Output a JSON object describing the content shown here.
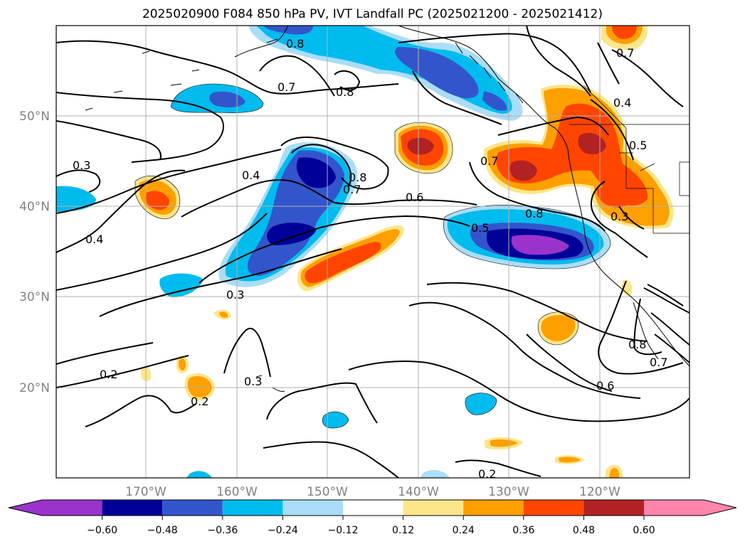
{
  "title": "2025020900 F084 850 hPa PV, IVT Landfall PC (2025021200 - 2025021412)",
  "map": {
    "lat_labels": [
      "50°N",
      "40°N",
      "30°N",
      "20°N"
    ],
    "lon_labels": [
      "170°W",
      "160°W",
      "150°W",
      "140°W",
      "130°W",
      "120°W"
    ],
    "contour_labels": [
      "0.8",
      "0.7",
      "0.8",
      "0.7",
      "0.4",
      "0.5",
      "0.3",
      "0.4",
      "0.8",
      "0.7",
      "0.6",
      "0.7",
      "0.8",
      "0.5",
      "0.3",
      "0.4",
      "0.3",
      "0.2",
      "0.2",
      "0.3",
      "0.6",
      "0.8",
      "0.7",
      "0.2"
    ],
    "fill_colors": {
      "n060": "#9933cc",
      "n048": "#000099",
      "n036": "#3355cc",
      "n024": "#00bbee",
      "n012": "#aaddf7",
      "p012": "#fde68a",
      "p024": "#ff9f00",
      "p036": "#ff4500",
      "p048": "#b22222",
      "p060": "#ff85aa"
    }
  },
  "colorbar": {
    "ticks": [
      "−0.60",
      "−0.48",
      "−0.36",
      "−0.24",
      "−0.12",
      "0.12",
      "0.24",
      "0.36",
      "0.48",
      "0.60"
    ],
    "colors": [
      "#9933cc",
      "#000099",
      "#3355cc",
      "#00bbee",
      "#aaddf7",
      "#ffffff",
      "#fde68a",
      "#ff9f00",
      "#ff4500",
      "#b22222",
      "#ff85aa"
    ]
  }
}
